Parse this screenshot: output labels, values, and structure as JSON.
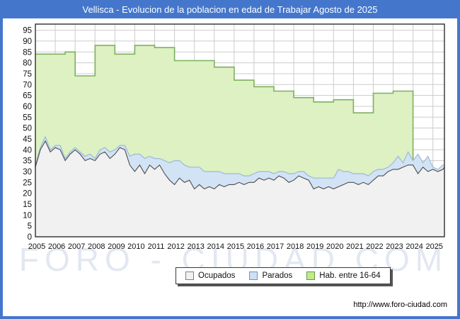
{
  "title": "Vellisca - Evolucion de la poblacion en edad de Trabajar Agosto de 2025",
  "footer": {
    "url": "http://www.foro-ciudad.com"
  },
  "watermark": "FORO - CIUDAD.COM",
  "colors": {
    "frame": "#4477cc",
    "grid": "#cccccc",
    "plot_border": "#2f2f2f",
    "ocupados_fill": "#f1f1f1",
    "ocupados_line": "#4d4d4d",
    "parados_fill": "#d2e3f6",
    "parados_line": "#9db9d8",
    "hab_fill": "#ddf1c2",
    "hab_line": "#7eb05e",
    "watermark": "#dee4f0"
  },
  "legend": [
    {
      "label": "Ocupados",
      "fill": "#f1f1f1",
      "border": "#808080"
    },
    {
      "label": "Parados",
      "fill": "#cfe0f4",
      "border": "#6b93c0"
    },
    {
      "label": "Hab. entre 16-64",
      "fill": "#c3e98c",
      "border": "#5f9c3f"
    }
  ],
  "chart_data": {
    "type": "area",
    "title": "Vellisca - Evolucion de la poblacion en edad de Trabajar Agosto de 2025",
    "xlabel": "",
    "ylabel": "",
    "x_start": 2005,
    "x_end": 2025.58,
    "x_step": 0.25,
    "ylim": [
      0,
      95
    ],
    "grid": true,
    "legend_position": "bottom",
    "y_ticks": [
      95,
      90,
      85,
      80,
      75,
      70,
      65,
      60,
      55,
      50,
      45,
      40,
      35,
      30,
      25,
      20,
      15,
      10,
      5,
      0
    ],
    "x_ticks": [
      2005,
      2006,
      2007,
      2008,
      2009,
      2010,
      2011,
      2012,
      2013,
      2014,
      2015,
      2016,
      2017,
      2018,
      2019,
      2020,
      2021,
      2022,
      2023,
      2024,
      2025
    ],
    "hab_steps": [
      {
        "from": 2005.0,
        "to": 2006.5,
        "value": 84
      },
      {
        "from": 2006.5,
        "to": 2007.0,
        "value": 85
      },
      {
        "from": 2007.0,
        "to": 2008.0,
        "value": 74
      },
      {
        "from": 2008.0,
        "to": 2009.0,
        "value": 88
      },
      {
        "from": 2009.0,
        "to": 2010.0,
        "value": 84
      },
      {
        "from": 2010.0,
        "to": 2011.0,
        "value": 88
      },
      {
        "from": 2011.0,
        "to": 2012.0,
        "value": 87
      },
      {
        "from": 2012.0,
        "to": 2014.0,
        "value": 81
      },
      {
        "from": 2014.0,
        "to": 2015.0,
        "value": 78
      },
      {
        "from": 2015.0,
        "to": 2016.0,
        "value": 72
      },
      {
        "from": 2016.0,
        "to": 2017.0,
        "value": 69
      },
      {
        "from": 2017.0,
        "to": 2018.0,
        "value": 67
      },
      {
        "from": 2018.0,
        "to": 2019.0,
        "value": 64
      },
      {
        "from": 2019.0,
        "to": 2020.0,
        "value": 62
      },
      {
        "from": 2020.0,
        "to": 2021.0,
        "value": 63
      },
      {
        "from": 2021.0,
        "to": 2022.0,
        "value": 57
      },
      {
        "from": 2022.0,
        "to": 2023.0,
        "value": 66
      },
      {
        "from": 2023.0,
        "to": 2024.0,
        "value": 67
      }
    ],
    "series": [
      {
        "name": "Ocupados",
        "values": [
          32,
          40,
          44,
          39,
          41,
          40,
          35,
          38,
          40,
          38,
          35,
          36,
          35,
          38,
          39,
          36,
          38,
          41,
          40,
          33,
          30,
          33,
          29,
          33,
          31,
          33,
          29,
          26,
          24,
          27,
          25,
          26,
          22,
          24,
          22,
          23,
          22,
          24,
          23,
          24,
          24,
          25,
          24,
          25,
          25,
          27,
          26,
          27,
          26,
          28,
          27,
          25,
          26,
          28,
          27,
          26,
          22,
          23,
          22,
          23,
          22,
          23,
          24,
          25,
          25,
          24,
          25,
          24,
          26,
          28,
          28,
          30,
          31,
          31,
          32,
          33,
          33,
          29,
          32,
          30,
          31,
          30,
          31,
          32
        ]
      },
      {
        "name": "Parados",
        "values": [
          1,
          1,
          2,
          1,
          1,
          2,
          1,
          1,
          1,
          1,
          2,
          2,
          1,
          2,
          2,
          3,
          2,
          1,
          2,
          4,
          8,
          5,
          7,
          4,
          5,
          3,
          6,
          8,
          11,
          8,
          8,
          6,
          10,
          8,
          8,
          7,
          8,
          6,
          6,
          5,
          5,
          4,
          4,
          3,
          4,
          3,
          4,
          3,
          3,
          2,
          3,
          4,
          3,
          2,
          3,
          2,
          5,
          4,
          5,
          4,
          5,
          8,
          6,
          5,
          4,
          5,
          4,
          4,
          4,
          3,
          3,
          2,
          3,
          6,
          2,
          6,
          2,
          9,
          2,
          7,
          1,
          1,
          2,
          1
        ]
      },
      {
        "name": "Hab. entre 16-64",
        "note": "annual step series, ends at 2024.0",
        "values": [
          84,
          85,
          74,
          88,
          84,
          88,
          87,
          81,
          81,
          78,
          72,
          69,
          67,
          64,
          62,
          63,
          57,
          66,
          67
        ]
      }
    ]
  }
}
